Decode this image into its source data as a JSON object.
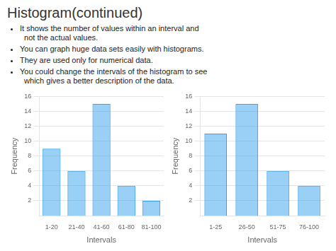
{
  "title": "Histogram(continued)",
  "annotations": [
    "It shows the number of values within an interval and\n  not the actual values.",
    "You can graph huge data sets easily with histograms.",
    "They are used only for numerical data.",
    "You could change the intervals of the histogram to see\n  which gives a better description of the data."
  ],
  "chart_data": [
    {
      "type": "bar",
      "categories": [
        "1-20",
        "21-40",
        "41-60",
        "61-80",
        "81-100"
      ],
      "values": [
        9,
        6,
        15,
        4,
        2
      ],
      "xlabel": "Intervals",
      "ylabel": "Frequency",
      "ylim": [
        0,
        16
      ],
      "yticks": [
        2,
        4,
        6,
        8,
        10,
        12,
        14,
        16
      ],
      "grid": true
    },
    {
      "type": "bar",
      "categories": [
        "1-25",
        "26-50",
        "51-75",
        "76-100"
      ],
      "values": [
        11,
        15,
        6,
        4
      ],
      "xlabel": "Intervals",
      "ylabel": "Frequency",
      "ylim": [
        0,
        16
      ],
      "yticks": [
        2,
        4,
        6,
        8,
        10,
        12,
        14,
        16
      ],
      "grid": true
    }
  ]
}
